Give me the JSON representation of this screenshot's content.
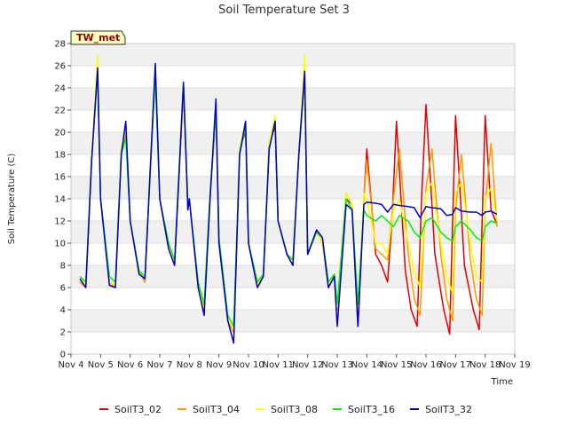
{
  "chart_data": {
    "type": "line",
    "title": "Soil Temperature Set 3",
    "xlabel": "Time",
    "ylabel": "Soil Temperature (C)",
    "badge": "TW_met",
    "xlim": [
      0,
      15
    ],
    "ylim": [
      0,
      28
    ],
    "yticks": [
      0,
      2,
      4,
      6,
      8,
      10,
      12,
      14,
      16,
      18,
      20,
      22,
      24,
      26,
      28
    ],
    "xticks": [
      {
        "v": 0,
        "label": "Nov 4"
      },
      {
        "v": 1,
        "label": "Nov 5"
      },
      {
        "v": 2,
        "label": "Nov 6"
      },
      {
        "v": 3,
        "label": "Nov 7"
      },
      {
        "v": 4,
        "label": "Nov 8"
      },
      {
        "v": 5,
        "label": "Nov 9"
      },
      {
        "v": 6,
        "label": "Nov 10"
      },
      {
        "v": 7,
        "label": "Nov 11"
      },
      {
        "v": 8,
        "label": "Nov 12"
      },
      {
        "v": 9,
        "label": "Nov 13"
      },
      {
        "v": 10,
        "label": "Nov 14"
      },
      {
        "v": 11,
        "label": "Nov 15"
      },
      {
        "v": 12,
        "label": "Nov 16"
      },
      {
        "v": 13,
        "label": "Nov 17"
      },
      {
        "v": 14,
        "label": "Nov 18"
      },
      {
        "v": 15,
        "label": "Nov 19"
      }
    ],
    "grid": "horizontal bands",
    "legend_position": "bottom",
    "series": [
      {
        "name": "SoilT3_02",
        "color": "#e00000",
        "x": [
          0.3,
          0.5,
          0.7,
          0.9,
          1.0,
          1.3,
          1.5,
          1.7,
          1.85,
          2.0,
          2.3,
          2.5,
          2.7,
          2.85,
          3.0,
          3.3,
          3.5,
          3.8,
          3.95,
          4.0,
          4.3,
          4.5,
          4.7,
          4.9,
          5.0,
          5.3,
          5.5,
          5.7,
          5.9,
          6.0,
          6.3,
          6.5,
          6.7,
          6.9,
          7.0,
          7.3,
          7.5,
          7.7,
          7.9,
          8.0,
          8.3,
          8.5,
          8.7,
          8.9,
          9.0,
          9.3,
          9.5,
          9.7,
          9.9,
          10.0,
          10.3,
          10.5,
          10.7,
          10.85,
          11.0,
          11.3,
          11.5,
          11.7,
          11.85,
          12.0,
          12.3,
          12.6,
          12.8,
          12.9,
          13.0,
          13.3,
          13.6,
          13.8,
          13.9,
          14.0,
          14.2,
          14.4
        ],
        "y": [
          6.5,
          6.0,
          18.0,
          25.5,
          14.0,
          6.5,
          6.0,
          18.5,
          20.0,
          12.0,
          7.5,
          6.5,
          18.0,
          25.5,
          14.0,
          9.5,
          8.0,
          24.0,
          13.0,
          14.0,
          6.0,
          4.0,
          14.0,
          22.0,
          10.0,
          3.0,
          2.0,
          18.5,
          20.0,
          10.0,
          6.0,
          7.0,
          19.0,
          20.5,
          12.0,
          9.0,
          8.0,
          18.0,
          25.0,
          9.0,
          11.0,
          10.0,
          6.0,
          7.0,
          4.0,
          14.0,
          13.5,
          2.5,
          14.0,
          18.5,
          9.0,
          8.0,
          6.5,
          12.0,
          21.0,
          7.5,
          4.0,
          2.5,
          14.0,
          22.5,
          9.0,
          4.0,
          1.8,
          12.0,
          21.5,
          8.0,
          4.0,
          2.2,
          12.0,
          21.5,
          13.0,
          11.7
        ]
      },
      {
        "name": "SoilT3_04",
        "color": "#ff9900",
        "x": [
          0.3,
          0.5,
          0.7,
          0.9,
          1.0,
          1.3,
          1.5,
          1.7,
          1.85,
          2.0,
          2.3,
          2.5,
          2.7,
          2.85,
          3.0,
          3.3,
          3.5,
          3.8,
          3.95,
          4.0,
          4.3,
          4.5,
          4.7,
          4.9,
          5.0,
          5.3,
          5.5,
          5.7,
          5.9,
          6.0,
          6.3,
          6.5,
          6.7,
          6.9,
          7.0,
          7.3,
          7.5,
          7.7,
          7.9,
          8.0,
          8.3,
          8.5,
          8.7,
          8.9,
          9.0,
          9.3,
          9.5,
          9.7,
          9.9,
          10.0,
          10.3,
          10.5,
          10.7,
          10.9,
          11.1,
          11.4,
          11.6,
          11.8,
          12.0,
          12.2,
          12.5,
          12.7,
          12.9,
          13.0,
          13.2,
          13.5,
          13.7,
          13.9,
          14.0,
          14.2,
          14.4
        ],
        "y": [
          6.5,
          6.0,
          18.0,
          26.0,
          14.0,
          6.5,
          6.0,
          18.5,
          20.0,
          12.0,
          7.5,
          6.5,
          18.0,
          25.5,
          14.0,
          9.5,
          8.0,
          24.0,
          13.0,
          14.0,
          6.0,
          4.0,
          14.0,
          22.0,
          10.0,
          3.0,
          2.0,
          18.5,
          20.5,
          10.0,
          6.0,
          7.0,
          19.0,
          21.0,
          12.0,
          9.0,
          8.0,
          18.0,
          25.5,
          9.0,
          11.0,
          10.0,
          6.0,
          7.0,
          4.0,
          14.5,
          13.5,
          3.0,
          14.0,
          17.5,
          9.5,
          9.0,
          8.5,
          14.0,
          18.5,
          9.0,
          5.0,
          3.5,
          15.0,
          18.5,
          9.0,
          5.0,
          3.0,
          13.0,
          18.0,
          8.5,
          5.0,
          3.5,
          13.5,
          19.0,
          11.5
        ]
      },
      {
        "name": "SoilT3_08",
        "color": "#ffff00",
        "x": [
          0.3,
          0.5,
          0.7,
          0.9,
          1.0,
          1.3,
          1.5,
          1.7,
          1.85,
          2.0,
          2.3,
          2.5,
          2.7,
          2.85,
          3.0,
          3.3,
          3.5,
          3.8,
          3.95,
          4.0,
          4.3,
          4.5,
          4.7,
          4.9,
          5.0,
          5.3,
          5.5,
          5.7,
          5.9,
          6.0,
          6.3,
          6.5,
          6.7,
          6.9,
          7.0,
          7.3,
          7.5,
          7.7,
          7.9,
          8.0,
          8.3,
          8.5,
          8.7,
          8.9,
          9.0,
          9.3,
          9.5,
          9.7,
          9.9,
          10.0,
          10.3,
          10.5,
          10.7,
          10.9,
          11.1,
          11.4,
          11.6,
          11.8,
          12.0,
          12.2,
          12.5,
          12.7,
          12.9,
          13.0,
          13.2,
          13.5,
          13.7,
          13.9,
          14.0,
          14.2,
          14.4
        ],
        "y": [
          6.8,
          6.2,
          18.0,
          27.0,
          14.0,
          6.5,
          6.2,
          18.5,
          20.5,
          12.0,
          7.5,
          6.8,
          18.0,
          26.0,
          14.0,
          9.5,
          8.2,
          24.5,
          13.0,
          14.0,
          6.2,
          4.2,
          14.0,
          22.5,
          10.0,
          3.2,
          2.2,
          18.5,
          21.0,
          10.0,
          6.2,
          7.2,
          19.0,
          21.5,
          12.0,
          9.0,
          8.2,
          18.0,
          27.0,
          9.0,
          11.0,
          10.0,
          6.2,
          7.2,
          4.2,
          14.5,
          13.5,
          4.0,
          14.5,
          14.0,
          10.0,
          10.0,
          9.0,
          13.0,
          14.0,
          10.0,
          7.5,
          6.0,
          14.5,
          15.5,
          10.0,
          7.0,
          5.5,
          14.5,
          15.5,
          10.0,
          7.0,
          6.5,
          14.0,
          15.0,
          12.0
        ]
      },
      {
        "name": "SoilT3_16",
        "color": "#00ee00",
        "x": [
          0.3,
          0.5,
          0.7,
          0.9,
          1.0,
          1.3,
          1.5,
          1.7,
          1.85,
          2.0,
          2.3,
          2.5,
          2.7,
          2.85,
          3.0,
          3.3,
          3.5,
          3.8,
          3.95,
          4.0,
          4.3,
          4.5,
          4.7,
          4.9,
          5.0,
          5.3,
          5.5,
          5.7,
          5.9,
          6.0,
          6.3,
          6.5,
          6.7,
          6.9,
          7.0,
          7.3,
          7.5,
          7.7,
          7.9,
          8.0,
          8.3,
          8.5,
          8.7,
          8.9,
          9.0,
          9.3,
          9.5,
          9.7,
          9.9,
          10.0,
          10.3,
          10.5,
          10.7,
          10.9,
          11.1,
          11.4,
          11.6,
          11.8,
          12.0,
          12.2,
          12.5,
          12.7,
          12.9,
          13.0,
          13.2,
          13.5,
          13.7,
          13.9,
          14.0,
          14.2,
          14.4
        ],
        "y": [
          7.0,
          6.5,
          17.5,
          25.5,
          14.0,
          7.0,
          6.5,
          18.0,
          19.5,
          12.0,
          7.5,
          7.0,
          17.5,
          25.0,
          14.0,
          10.0,
          8.5,
          24.5,
          13.5,
          14.0,
          6.5,
          4.5,
          14.5,
          22.0,
          10.5,
          3.5,
          2.5,
          18.0,
          20.5,
          10.0,
          6.5,
          7.2,
          18.5,
          21.0,
          12.0,
          9.0,
          8.5,
          18.0,
          25.0,
          9.0,
          11.0,
          10.5,
          6.5,
          7.2,
          4.5,
          14.0,
          13.0,
          4.5,
          13.0,
          12.5,
          12.0,
          12.5,
          12.0,
          11.5,
          12.5,
          12.0,
          11.0,
          10.5,
          12.0,
          12.3,
          11.0,
          10.5,
          10.2,
          11.5,
          12.0,
          11.2,
          10.5,
          10.2,
          11.5,
          12.0,
          11.8
        ]
      },
      {
        "name": "SoilT3_32",
        "color": "#0000cc",
        "x": [
          0.3,
          0.5,
          0.7,
          0.9,
          1.0,
          1.3,
          1.5,
          1.7,
          1.85,
          2.0,
          2.3,
          2.5,
          2.7,
          2.85,
          3.0,
          3.3,
          3.5,
          3.8,
          3.95,
          4.0,
          4.3,
          4.5,
          4.7,
          4.9,
          5.0,
          5.3,
          5.5,
          5.7,
          5.9,
          6.0,
          6.3,
          6.5,
          6.7,
          6.9,
          7.0,
          7.3,
          7.5,
          7.7,
          7.9,
          8.0,
          8.3,
          8.5,
          8.7,
          8.9,
          9.0,
          9.3,
          9.5,
          9.7,
          9.9,
          10.0,
          10.3,
          10.5,
          10.7,
          10.9,
          11.1,
          11.4,
          11.6,
          11.8,
          12.0,
          12.2,
          12.5,
          12.7,
          12.9,
          13.0,
          13.2,
          13.5,
          13.7,
          13.9,
          14.0,
          14.2,
          14.4
        ],
        "y": [
          6.8,
          6.0,
          17.5,
          25.8,
          14.0,
          6.2,
          6.0,
          18.0,
          21.0,
          12.0,
          7.2,
          6.8,
          17.8,
          26.2,
          14.0,
          9.5,
          8.0,
          24.5,
          13.0,
          14.0,
          6.0,
          3.5,
          14.0,
          23.0,
          10.0,
          3.0,
          1.0,
          18.0,
          21.0,
          10.0,
          6.0,
          7.0,
          18.5,
          21.0,
          12.0,
          9.0,
          8.0,
          18.0,
          25.5,
          9.0,
          11.2,
          10.5,
          6.0,
          7.0,
          2.5,
          13.5,
          13.0,
          2.5,
          13.5,
          13.7,
          13.6,
          13.5,
          12.8,
          13.5,
          13.4,
          13.3,
          13.2,
          12.3,
          13.3,
          13.2,
          13.1,
          12.5,
          12.6,
          13.2,
          12.9,
          12.8,
          12.8,
          12.5,
          12.8,
          12.9,
          12.6
        ]
      }
    ]
  }
}
